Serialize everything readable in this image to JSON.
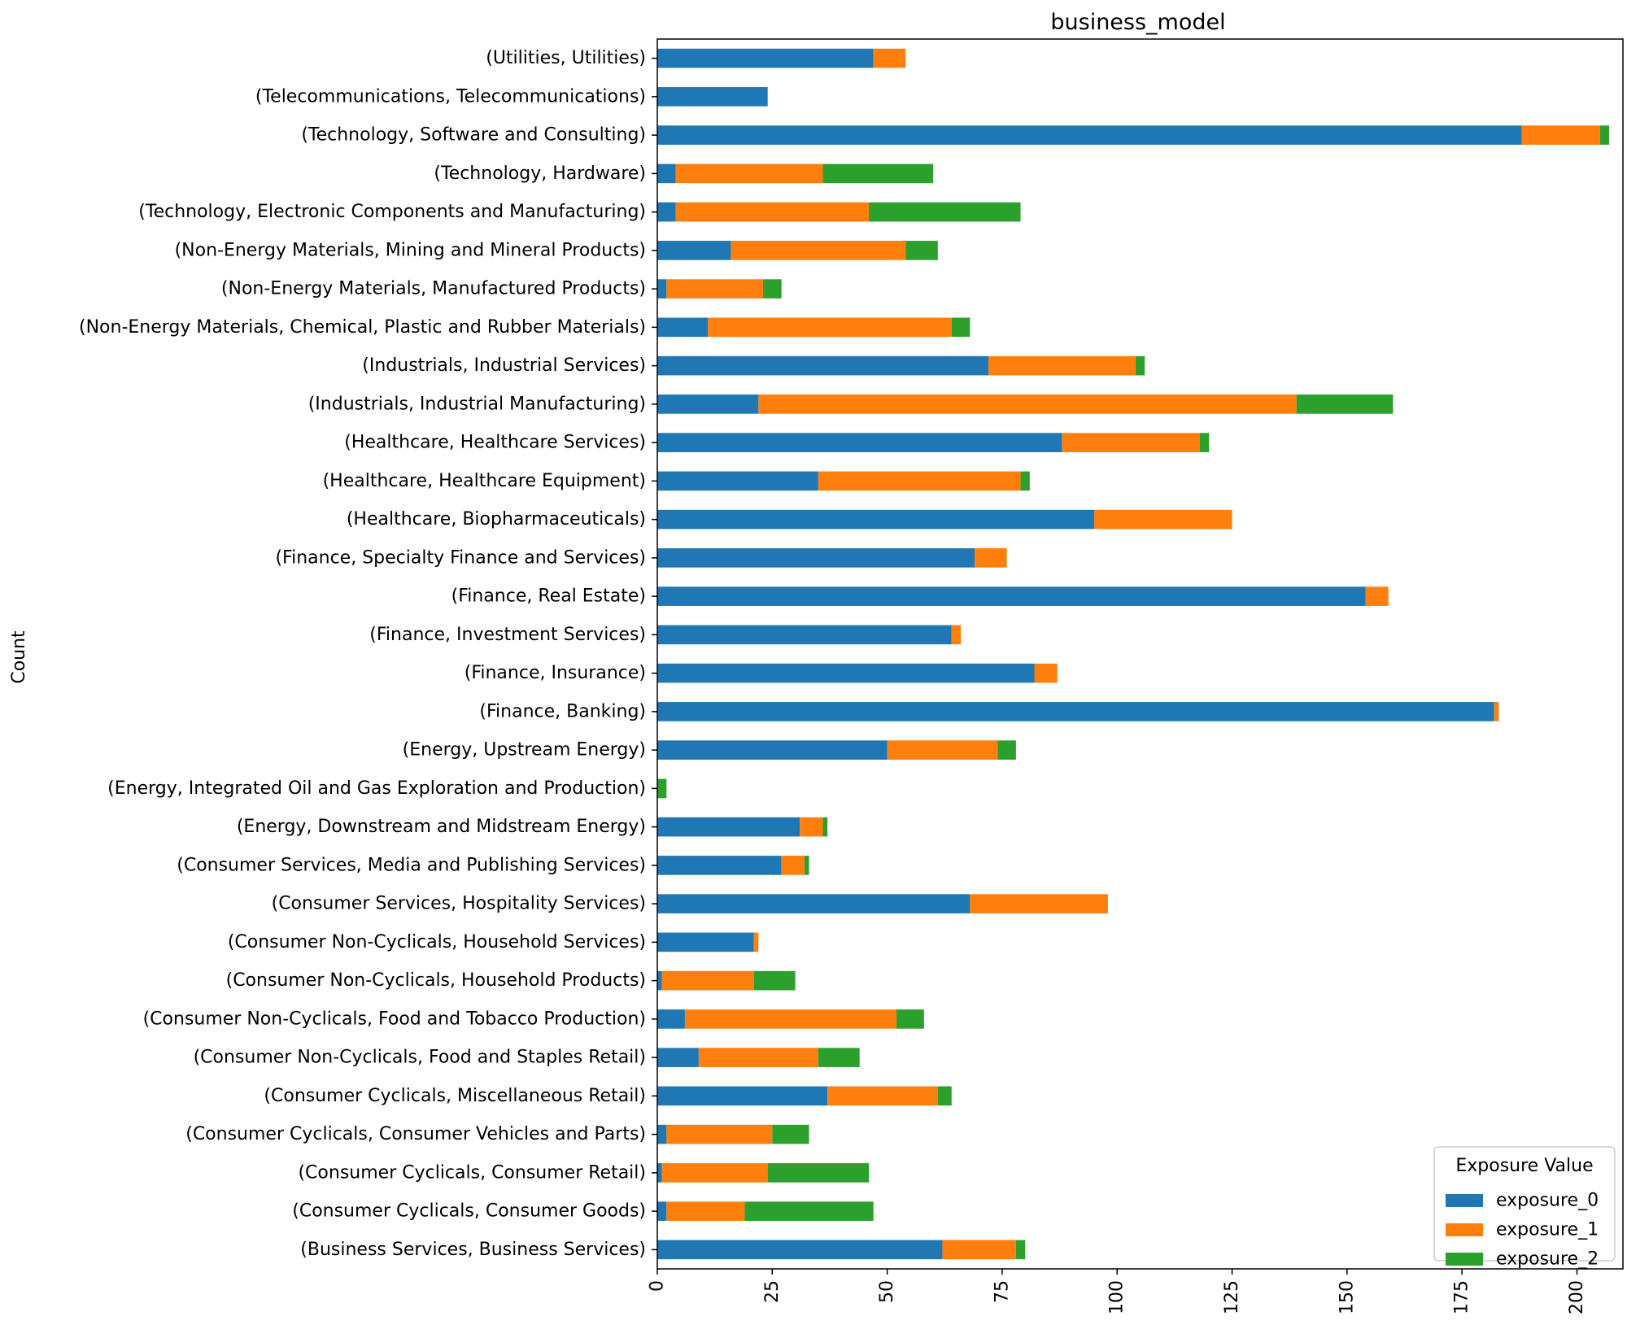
{
  "chart_data": {
    "type": "bar",
    "orientation": "horizontal",
    "stacked": true,
    "title": "business_model",
    "xlabel": "",
    "ylabel": "Count",
    "xlim": [
      0,
      210
    ],
    "xticks": [
      0,
      25,
      50,
      75,
      100,
      125,
      150,
      175,
      200
    ],
    "grid": false,
    "legend": {
      "title": "Exposure Value",
      "placement": "bottom-right"
    },
    "categories": [
      "(Utilities, Utilities)",
      "(Telecommunications, Telecommunications)",
      "(Technology, Software and Consulting)",
      "(Technology, Hardware)",
      "(Technology, Electronic Components and Manufacturing)",
      "(Non-Energy Materials, Mining and Mineral Products)",
      "(Non-Energy Materials, Manufactured Products)",
      "(Non-Energy Materials, Chemical, Plastic and Rubber Materials)",
      "(Industrials, Industrial Services)",
      "(Industrials, Industrial Manufacturing)",
      "(Healthcare, Healthcare Services)",
      "(Healthcare, Healthcare Equipment)",
      "(Healthcare, Biopharmaceuticals)",
      "(Finance, Specialty Finance and Services)",
      "(Finance, Real Estate)",
      "(Finance, Investment Services)",
      "(Finance, Insurance)",
      "(Finance, Banking)",
      "(Energy, Upstream Energy)",
      "(Energy, Integrated Oil and Gas Exploration and Production)",
      "(Energy, Downstream and Midstream Energy)",
      "(Consumer Services, Media and Publishing Services)",
      "(Consumer Services, Hospitality Services)",
      "(Consumer Non-Cyclicals, Household Services)",
      "(Consumer Non-Cyclicals, Household Products)",
      "(Consumer Non-Cyclicals, Food and Tobacco Production)",
      "(Consumer Non-Cyclicals, Food and Staples Retail)",
      "(Consumer Cyclicals, Miscellaneous Retail)",
      "(Consumer Cyclicals, Consumer Vehicles and Parts)",
      "(Consumer Cyclicals, Consumer Retail)",
      "(Consumer Cyclicals, Consumer Goods)",
      "(Business Services, Business Services)"
    ],
    "series": [
      {
        "name": "exposure_0",
        "color": "#1f77b4",
        "values": [
          47,
          24,
          188,
          4,
          4,
          16,
          2,
          11,
          72,
          22,
          88,
          35,
          95,
          69,
          154,
          64,
          82,
          182,
          50,
          0,
          31,
          27,
          68,
          21,
          1,
          6,
          9,
          37,
          2,
          1,
          2,
          62
        ]
      },
      {
        "name": "exposure_1",
        "color": "#ff7f0e",
        "values": [
          7,
          0,
          17,
          32,
          42,
          38,
          21,
          53,
          32,
          117,
          30,
          44,
          30,
          7,
          5,
          2,
          5,
          1,
          24,
          0,
          5,
          5,
          30,
          1,
          20,
          46,
          26,
          24,
          23,
          23,
          17,
          16
        ]
      },
      {
        "name": "exposure_2",
        "color": "#2ca02c",
        "values": [
          0,
          0,
          2,
          24,
          33,
          7,
          4,
          4,
          2,
          21,
          2,
          2,
          0,
          0,
          0,
          0,
          0,
          0,
          4,
          2,
          1,
          1,
          0,
          0,
          9,
          6,
          9,
          3,
          8,
          22,
          28,
          2
        ]
      }
    ]
  }
}
